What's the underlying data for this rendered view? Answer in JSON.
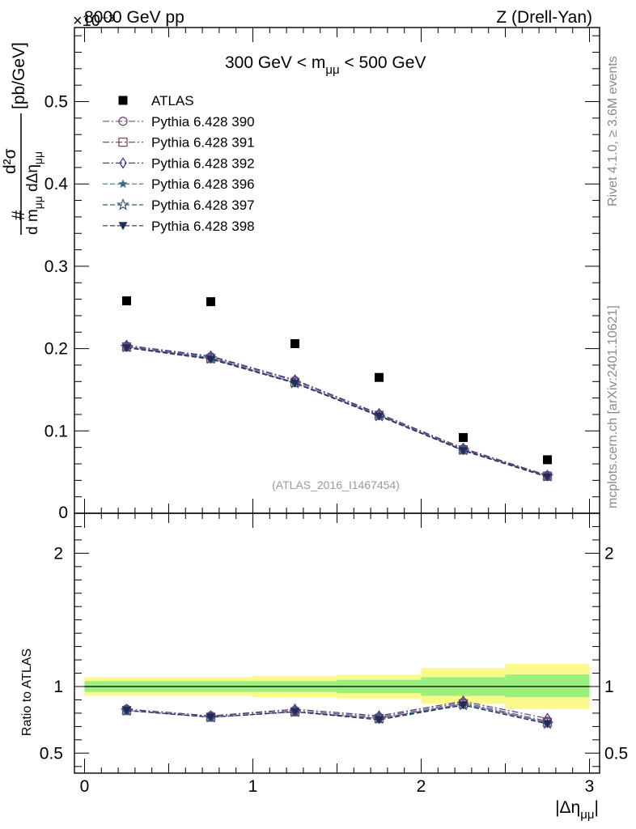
{
  "header": {
    "left": "8000 GeV pp",
    "right": "Z (Drell-Yan)",
    "exponent": "×10⁻³"
  },
  "side_labels": {
    "rivet": "Rivet 4.1.0, ≥ 3.6M events",
    "mcplots": "mcplots.cern.ch [arXiv:2401.10621]"
  },
  "chart_data": [
    {
      "type": "scatter",
      "panel": "main",
      "title": "300 GeV < mμμ < 500 GeV",
      "ylabel": "d²σ / d mμμ dΔημμ [pb/GeV]",
      "ylabel_parts": {
        "num": "d²σ",
        "den": "d m",
        "den_sub": "μμ",
        "den2": " dΔη",
        "den2_sub": "μμ",
        "unit": "[pb/GeV]",
        "hash": "#"
      },
      "y_scale": "×10⁻³",
      "xlim": [
        -0.06,
        3.06
      ],
      "ylim": [
        0,
        0.59
      ],
      "yticks": [
        0.1,
        0.2,
        0.3,
        0.4,
        0.5
      ],
      "ytick_labels": [
        "0.1",
        "0.2",
        "0.3",
        "0.4",
        "0.5"
      ],
      "y_zero_label": "0",
      "watermark": "(ATLAS_2016_I1467454)",
      "x": [
        0.25,
        0.75,
        1.25,
        1.75,
        2.25,
        2.75
      ],
      "series": [
        {
          "name": "ATLAS",
          "marker": "square-filled",
          "color": "#000000",
          "line": "none",
          "values": [
            0.258,
            0.257,
            0.206,
            0.165,
            0.092,
            0.065
          ]
        },
        {
          "name": "Pythia 6.428 390",
          "marker": "circle-open",
          "color": "#7a4d7f",
          "line": "dashdot",
          "values": [
            0.203,
            0.19,
            0.161,
            0.12,
            0.078,
            0.046
          ]
        },
        {
          "name": "Pythia 6.428 391",
          "marker": "square-open",
          "color": "#7a4d61",
          "line": "dashdot",
          "values": [
            0.202,
            0.188,
            0.159,
            0.119,
            0.077,
            0.045
          ]
        },
        {
          "name": "Pythia 6.428 392",
          "marker": "diamond-open",
          "color": "#4f3b87",
          "line": "dashdot",
          "values": [
            0.204,
            0.191,
            0.162,
            0.121,
            0.079,
            0.046
          ]
        },
        {
          "name": "Pythia 6.428 396",
          "marker": "star-filled",
          "color": "#3c6a86",
          "line": "dashed",
          "values": [
            0.202,
            0.189,
            0.159,
            0.119,
            0.077,
            0.045
          ]
        },
        {
          "name": "Pythia 6.428 397",
          "marker": "star-open",
          "color": "#3a5a7a",
          "line": "dashed",
          "values": [
            0.202,
            0.188,
            0.158,
            0.118,
            0.077,
            0.045
          ]
        },
        {
          "name": "Pythia 6.428 398",
          "marker": "triangle-down-filled",
          "color": "#232a5c",
          "line": "dashed",
          "values": [
            0.201,
            0.187,
            0.158,
            0.118,
            0.076,
            0.044
          ]
        }
      ]
    },
    {
      "type": "scatter",
      "panel": "ratio",
      "ylabel": "Ratio to ATLAS",
      "xlabel": "|Δημμ|",
      "xlabel_parts": {
        "pre": "|Δη",
        "sub": "μμ",
        "post": "|"
      },
      "xlim": [
        -0.06,
        3.06
      ],
      "ylim": [
        0.35,
        2.3
      ],
      "yticks": [
        0.5,
        1,
        2
      ],
      "ytick_labels": [
        "0.5",
        "1",
        "2"
      ],
      "xticks": [
        0,
        1,
        2,
        3
      ],
      "xtick_labels": [
        "0",
        "1",
        "2",
        "3"
      ],
      "reference": 1,
      "bins": [
        [
          0,
          0.5
        ],
        [
          0.5,
          1
        ],
        [
          1,
          1.5
        ],
        [
          1.5,
          2
        ],
        [
          2,
          2.5
        ],
        [
          2.5,
          3
        ]
      ],
      "band_inner": [
        [
          0.96,
          1.04
        ],
        [
          0.96,
          1.04
        ],
        [
          0.96,
          1.04
        ],
        [
          0.95,
          1.05
        ],
        [
          0.93,
          1.07
        ],
        [
          0.92,
          1.09
        ]
      ],
      "band_outer": [
        [
          0.93,
          1.07
        ],
        [
          0.93,
          1.07
        ],
        [
          0.92,
          1.08
        ],
        [
          0.91,
          1.09
        ],
        [
          0.87,
          1.14
        ],
        [
          0.83,
          1.17
        ]
      ],
      "band_colors": {
        "inner": "#99f07f",
        "outer": "#fafa8c"
      },
      "x": [
        0.25,
        0.75,
        1.25,
        1.75,
        2.25,
        2.75
      ],
      "series": [
        {
          "name": "Pythia 6.428 390",
          "values": [
            0.83,
            0.78,
            0.82,
            0.77,
            0.88,
            0.74
          ]
        },
        {
          "name": "Pythia 6.428 391",
          "values": [
            0.82,
            0.77,
            0.81,
            0.76,
            0.87,
            0.73
          ]
        },
        {
          "name": "Pythia 6.428 392",
          "values": [
            0.83,
            0.78,
            0.83,
            0.78,
            0.89,
            0.76
          ]
        },
        {
          "name": "Pythia 6.428 396",
          "values": [
            0.82,
            0.77,
            0.81,
            0.76,
            0.87,
            0.73
          ]
        },
        {
          "name": "Pythia 6.428 397",
          "values": [
            0.82,
            0.77,
            0.81,
            0.76,
            0.86,
            0.72
          ]
        },
        {
          "name": "Pythia 6.428 398",
          "values": [
            0.82,
            0.77,
            0.81,
            0.75,
            0.86,
            0.72
          ]
        }
      ]
    }
  ]
}
